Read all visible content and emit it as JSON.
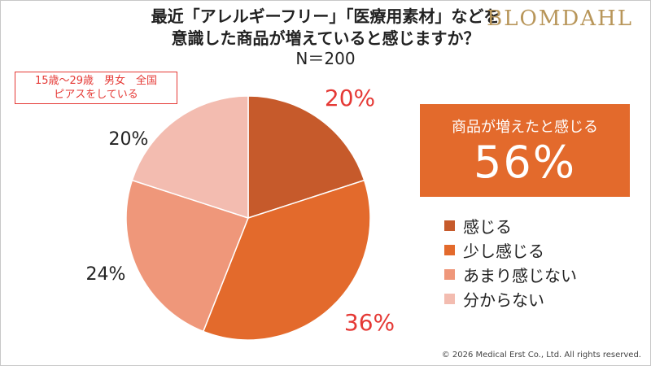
{
  "header": {
    "title_line1": "最近「アレルギーフリー」「医療用素材」などを",
    "title_line2": "意識した商品が増えていると感じますか？",
    "title_line3": "N＝200",
    "brand": "BLOMDAHL"
  },
  "sample_box": {
    "line1": "15歳～29歳　男女　全国",
    "line2": "ピアスをしている"
  },
  "callout": {
    "label": "商品が増えたと感じる",
    "value": "56%"
  },
  "footer": {
    "copyright": "© 2026 Medical Erst Co., Ltd. All rights reserved."
  },
  "colors": {
    "accent_red": "#e53935",
    "callout_bg": "#e36a2c"
  },
  "chart_data": {
    "type": "pie",
    "start_angle": "12 o'clock",
    "direction": "clockwise",
    "slices": [
      {
        "name": "感じる",
        "value": 20,
        "label": "20%",
        "color": "#c65a2b",
        "label_color": "#e53935"
      },
      {
        "name": "少し感じる",
        "value": 36,
        "label": "36%",
        "color": "#e36a2c",
        "label_color": "#e53935"
      },
      {
        "name": "あまり感じない",
        "value": 24,
        "label": "24%",
        "color": "#ef977a",
        "label_color": "#222222"
      },
      {
        "name": "分からない",
        "value": 20,
        "label": "20%",
        "color": "#f3bcb0",
        "label_color": "#222222"
      }
    ],
    "legend_position": "right"
  }
}
